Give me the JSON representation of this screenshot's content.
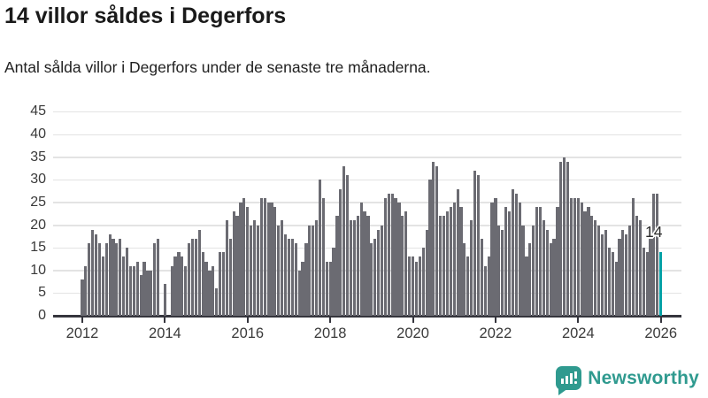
{
  "header": {
    "title": "14 villor såldes i Degerfors",
    "subtitle": "Antal sålda villor i Degerfors under de senaste tre månaderna."
  },
  "chart_data": {
    "type": "bar",
    "title": "14 villor såldes i Degerfors",
    "subtitle": "Antal sålda villor i Degerfors under de senaste tre månaderna.",
    "xlabel": "",
    "ylabel": "",
    "start_month": "2012-01",
    "frequency": "monthly",
    "ylim": [
      0,
      45
    ],
    "yticks": [
      0,
      5,
      10,
      15,
      20,
      25,
      30,
      35,
      40,
      45
    ],
    "xtick_labels": [
      "2012",
      "2014",
      "2016",
      "2018",
      "2020",
      "2022",
      "2024",
      "2026"
    ],
    "grid": "horizontal",
    "bar_color": "#6b6b72",
    "highlight_color": "#00a1a6",
    "highlight_index": 168,
    "highlight_value": 14,
    "highlight_label": "14",
    "values": [
      8,
      11,
      16,
      19,
      18,
      16,
      13,
      16,
      18,
      17,
      16,
      17,
      13,
      15,
      11,
      11,
      12,
      9,
      12,
      10,
      10,
      16,
      17,
      0,
      7,
      0,
      11,
      13,
      14,
      13,
      11,
      16,
      17,
      17,
      19,
      14,
      12,
      10,
      11,
      6,
      14,
      14,
      21,
      17,
      23,
      22,
      25,
      26,
      24,
      20,
      21,
      20,
      26,
      26,
      25,
      25,
      24,
      20,
      21,
      18,
      17,
      17,
      16,
      10,
      12,
      16,
      20,
      20,
      21,
      30,
      26,
      12,
      12,
      15,
      22,
      28,
      33,
      31,
      21,
      21,
      22,
      25,
      23,
      22,
      16,
      17,
      19,
      20,
      26,
      27,
      27,
      26,
      25,
      22,
      23,
      13,
      13,
      12,
      13,
      15,
      19,
      30,
      34,
      33,
      22,
      22,
      23,
      24,
      25,
      28,
      24,
      16,
      13,
      21,
      32,
      31,
      17,
      11,
      13,
      25,
      26,
      20,
      19,
      24,
      23,
      28,
      27,
      25,
      20,
      13,
      16,
      20,
      24,
      24,
      21,
      19,
      16,
      17,
      24,
      34,
      35,
      34,
      26,
      26,
      26,
      25,
      23,
      24,
      22,
      21,
      20,
      18,
      19,
      15,
      14,
      12,
      17,
      19,
      18,
      20,
      26,
      22,
      21,
      15,
      14,
      18,
      27,
      27,
      14
    ]
  },
  "annotation": {
    "last_value_label": "14"
  },
  "branding": {
    "logo_text": "Newsworthy",
    "logo_color": "#2f9a8f"
  }
}
